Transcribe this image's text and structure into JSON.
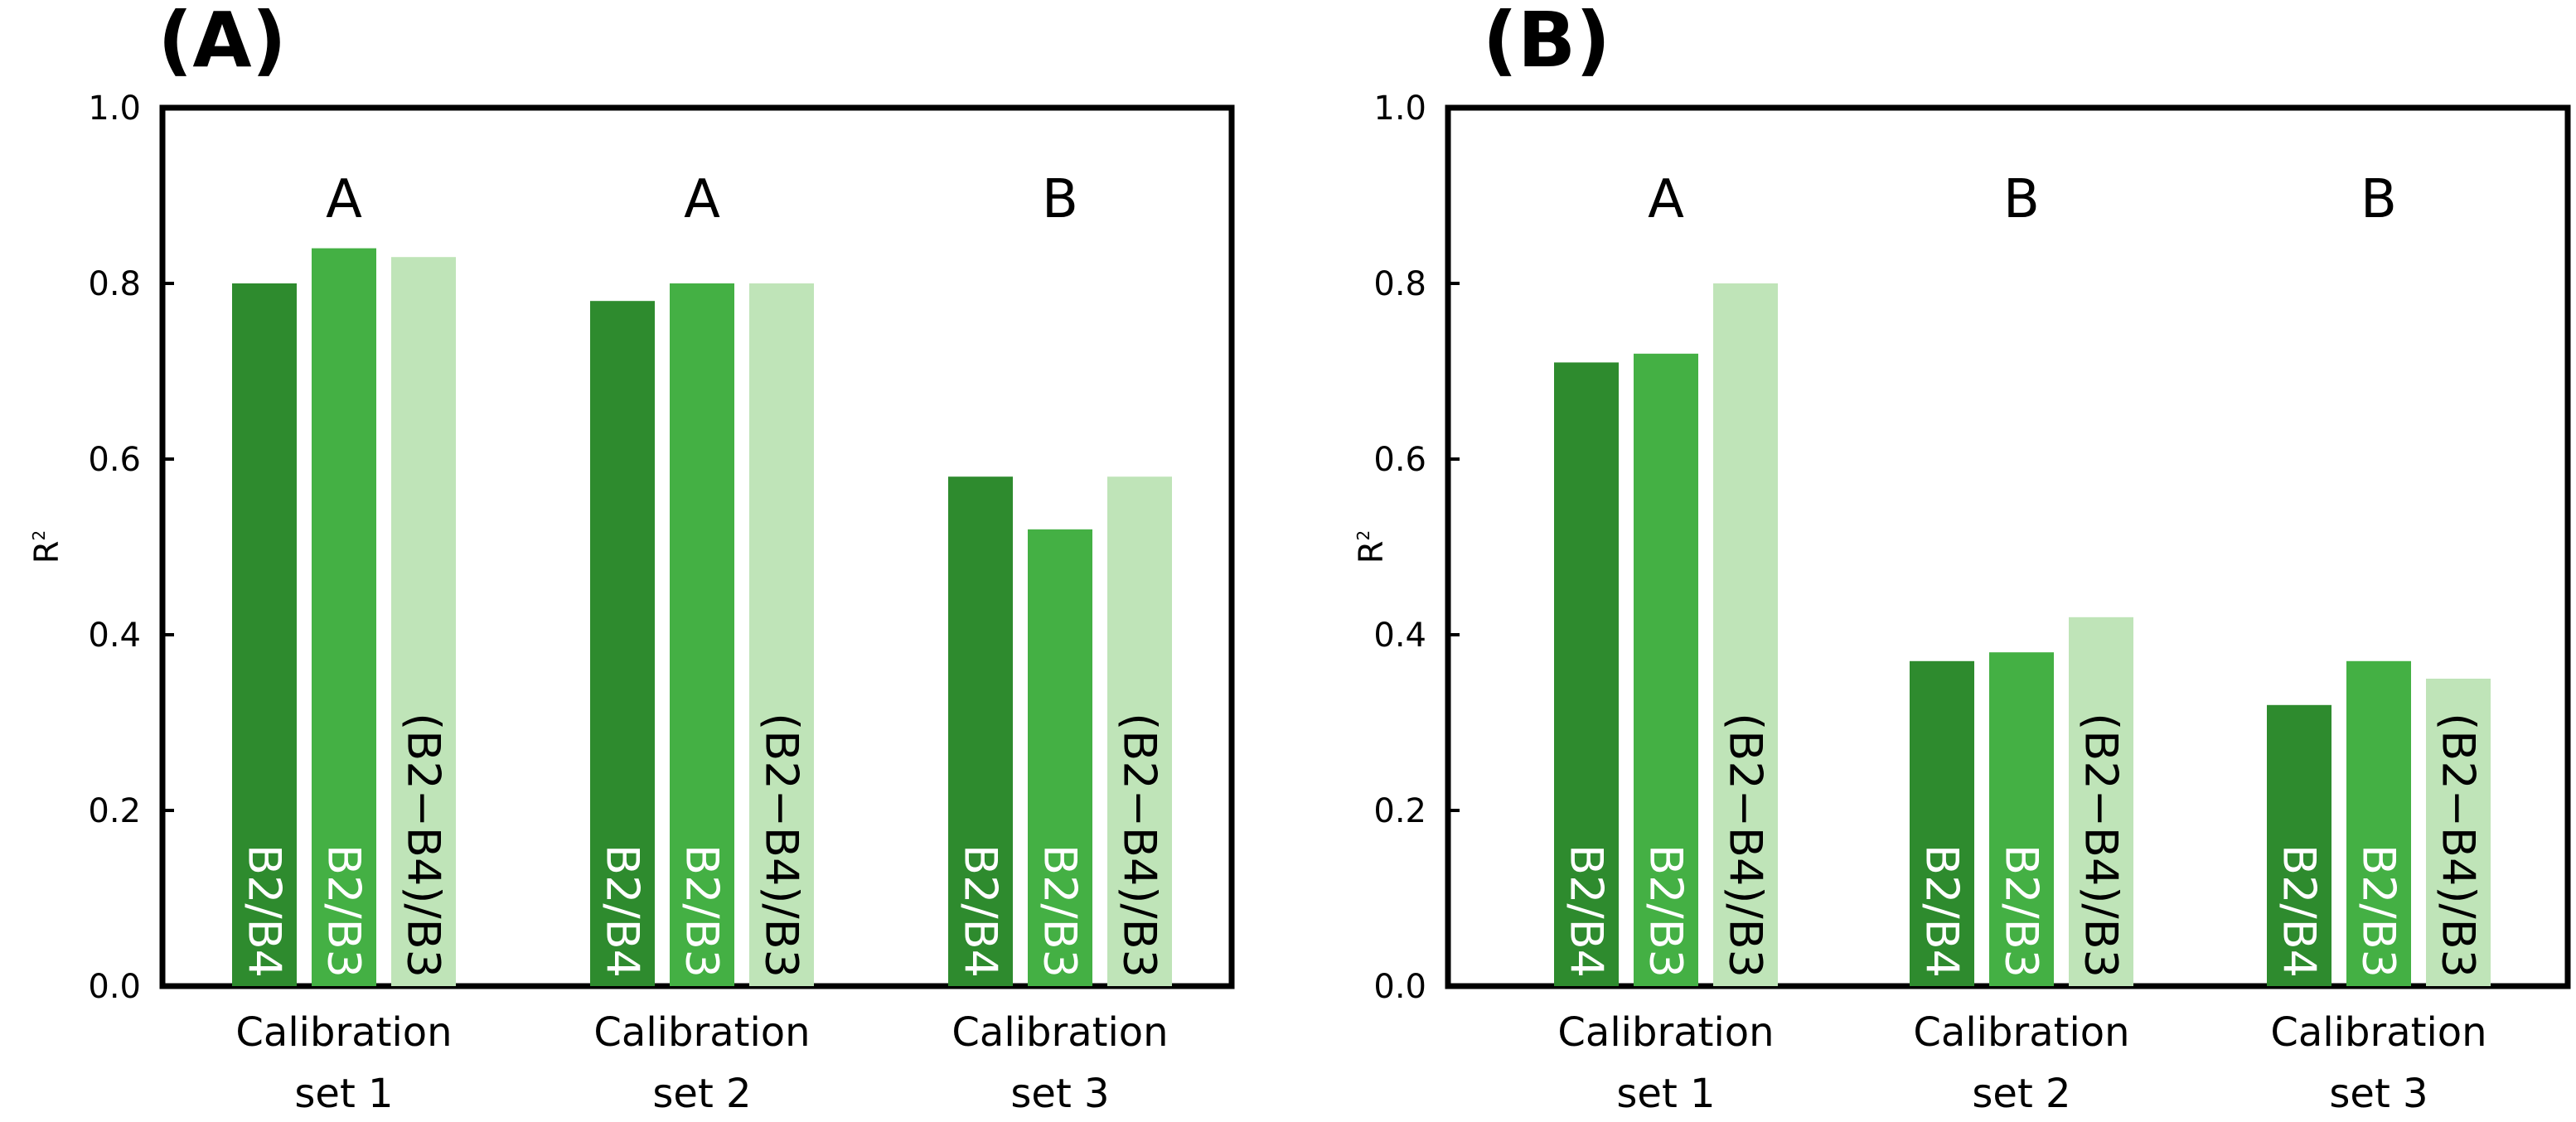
{
  "colors": {
    "B2/B4": "#2e8b2e",
    "B2/B3": "#44b044",
    "(B2−B4)/B3": "#bfe4b8",
    "label_on_dark": "#ffffff",
    "label_on_light": "#000000"
  },
  "chart_data": [
    {
      "type": "bar",
      "panel_label": "(A)",
      "ylabel": "R",
      "ylabel_superscript": "2",
      "ylim": [
        0,
        1.0
      ],
      "yticks": [
        "0.0",
        "0.2",
        "0.4",
        "0.6",
        "0.8",
        "1.0"
      ],
      "categories": [
        {
          "line1": "Calibration",
          "line2": "set 1",
          "group_letter": "A"
        },
        {
          "line1": "Calibration",
          "line2": "set 2",
          "group_letter": "A"
        },
        {
          "line1": "Calibration",
          "line2": "set 3",
          "group_letter": "B"
        }
      ],
      "series": [
        {
          "name": "B2/B4",
          "values": [
            0.8,
            0.78,
            0.58
          ]
        },
        {
          "name": "B2/B3",
          "values": [
            0.84,
            0.8,
            0.52
          ]
        },
        {
          "name": "(B2−B4)/B3",
          "values": [
            0.83,
            0.8,
            0.58
          ]
        }
      ]
    },
    {
      "type": "bar",
      "panel_label": "(B)",
      "ylabel": "R",
      "ylabel_superscript": "2",
      "ylim": [
        0,
        1.0
      ],
      "yticks": [
        "0.0",
        "0.2",
        "0.4",
        "0.6",
        "0.8",
        "1.0"
      ],
      "categories": [
        {
          "line1": "Calibration",
          "line2": "set 1",
          "group_letter": "A"
        },
        {
          "line1": "Calibration",
          "line2": "set 2",
          "group_letter": "B"
        },
        {
          "line1": "Calibration",
          "line2": "set 3",
          "group_letter": "B"
        }
      ],
      "series": [
        {
          "name": "B2/B4",
          "values": [
            0.71,
            0.37,
            0.32
          ]
        },
        {
          "name": "B2/B3",
          "values": [
            0.72,
            0.38,
            0.37
          ]
        },
        {
          "name": "(B2−B4)/B3",
          "values": [
            0.8,
            0.42,
            0.35
          ]
        }
      ]
    }
  ]
}
